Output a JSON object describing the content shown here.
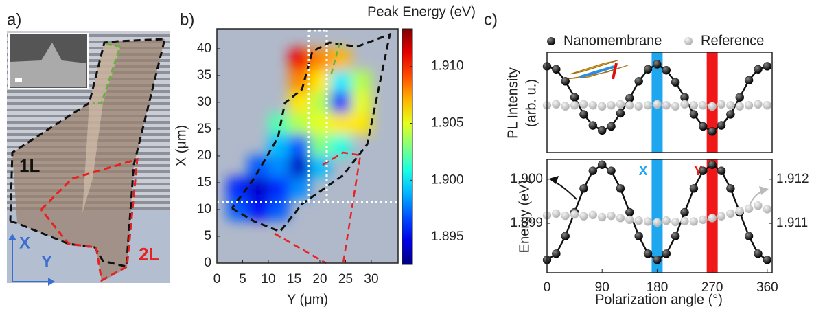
{
  "panel_a": {
    "label": "a)",
    "layer_1": "1L",
    "layer_2": "2L",
    "axis_x": "X",
    "axis_y": "Y"
  },
  "chart_data": [
    {
      "type": "heatmap",
      "panel_label": "b)",
      "xlabel": "Y (μm)",
      "ylabel": "X (μm)",
      "x": [
        4,
        8,
        12,
        16,
        20,
        24,
        28
      ],
      "y": [
        10,
        14,
        18,
        22,
        26,
        30,
        34,
        38
      ],
      "z": [
        [
          1.897,
          1.895,
          1.897,
          null,
          null,
          null,
          null
        ],
        [
          1.896,
          1.894,
          1.896,
          1.898,
          null,
          null,
          null
        ],
        [
          null,
          1.897,
          1.898,
          1.894,
          1.899,
          null,
          null
        ],
        [
          null,
          null,
          1.899,
          1.897,
          1.903,
          1.901,
          null
        ],
        [
          null,
          null,
          1.902,
          1.904,
          1.905,
          1.906,
          1.906
        ],
        [
          null,
          null,
          null,
          1.906,
          1.904,
          1.896,
          1.905
        ],
        [
          null,
          null,
          null,
          1.908,
          1.906,
          1.9,
          1.904
        ],
        [
          null,
          null,
          null,
          1.911,
          1.908,
          1.907,
          null
        ]
      ],
      "xlim": [
        0,
        35.2
      ],
      "ylim": [
        0,
        43.7
      ],
      "xticks": [
        0,
        5,
        10,
        15,
        20,
        25,
        30
      ],
      "yticks": [
        0,
        5,
        10,
        15,
        20,
        25,
        30,
        35,
        40
      ],
      "colormap": "jet",
      "background": "#b0b9ca",
      "colorbar": {
        "title": "Peak Energy (eV)",
        "lim": [
          1.8926,
          1.9133
        ],
        "ticks": [
          {
            "value": 1.91,
            "label": "1.910"
          },
          1.905,
          {
            "value": 1.9,
            "label": "1.900"
          },
          1.895
        ]
      }
    },
    {
      "type": "line",
      "panel_label": "c)",
      "ylabel": [
        "PL Intensity",
        "(arb. u.)"
      ],
      "x": [
        0,
        15,
        30,
        45,
        60,
        75,
        90,
        105,
        120,
        135,
        150,
        165,
        180,
        195,
        210,
        225,
        240,
        255,
        270,
        285,
        300,
        315,
        330,
        345,
        360
      ],
      "xlim": [
        0,
        368
      ],
      "ylim": [
        0,
        1
      ],
      "series": [
        {
          "name": "Nanomembrane",
          "color": "#111111",
          "values": [
            0.86,
            0.83,
            0.71,
            0.55,
            0.38,
            0.27,
            0.22,
            0.26,
            0.39,
            0.54,
            0.71,
            0.83,
            0.88,
            0.82,
            0.7,
            0.55,
            0.38,
            0.26,
            0.21,
            0.27,
            0.38,
            0.55,
            0.72,
            0.83,
            0.86
          ]
        },
        {
          "name": "Reference",
          "color": "#c8c8c8",
          "values": [
            0.47,
            0.48,
            0.46,
            0.47,
            0.48,
            0.47,
            0.46,
            0.47,
            0.48,
            0.47,
            0.46,
            0.47,
            0.48,
            0.47,
            0.46,
            0.48,
            0.47,
            0.47,
            0.46,
            0.48,
            0.47,
            0.46,
            0.47,
            0.48,
            0.47
          ]
        }
      ],
      "bands": [
        {
          "x": 180,
          "color": "#1ea7ee"
        },
        {
          "x": 270,
          "color": "#f01818"
        }
      ]
    },
    {
      "type": "line",
      "xlabel": "Polarization angle (°)",
      "ylabel": "Energy (eV)",
      "x": [
        0,
        15,
        30,
        45,
        60,
        75,
        90,
        105,
        120,
        135,
        150,
        165,
        180,
        195,
        210,
        225,
        240,
        255,
        270,
        285,
        300,
        315,
        330,
        345,
        360
      ],
      "xlim": [
        0,
        368
      ],
      "xticks": [
        0,
        90,
        180,
        270,
        360
      ],
      "ylim": [
        1.89788,
        1.90045
      ],
      "yticks": [
        1.899,
        {
          "value": 1.9,
          "label": "1.900"
        }
      ],
      "y2lim": [
        1.90988,
        1.91245
      ],
      "y2ticks": [
        1.911,
        1.912
      ],
      "series": [
        {
          "color": "#111111",
          "values": [
            1.89817,
            1.89831,
            1.89871,
            1.89925,
            1.89979,
            1.90019,
            1.90033,
            1.90019,
            1.89979,
            1.89925,
            1.89871,
            1.89831,
            1.89817,
            1.89831,
            1.89871,
            1.89925,
            1.89979,
            1.90019,
            1.90033,
            1.90019,
            1.89979,
            1.89925,
            1.89871,
            1.89831,
            1.89817
          ]
        },
        {
          "color": "#c8c8c8",
          "axis": "y2",
          "values": [
            1.91118,
            1.91122,
            1.91117,
            1.9112,
            1.91116,
            1.91119,
            1.91114,
            1.91117,
            1.91112,
            1.91108,
            1.91106,
            1.91104,
            1.91102,
            1.91106,
            1.91103,
            1.91105,
            1.91104,
            1.91108,
            1.91112,
            1.91116,
            1.91122,
            1.91128,
            1.91133,
            1.9114,
            1.91132
          ]
        }
      ],
      "bands": [
        {
          "x": 180,
          "color": "#1ea7ee",
          "label": "X"
        },
        {
          "x": 270,
          "color": "#f01818",
          "label": "Y"
        }
      ]
    }
  ]
}
